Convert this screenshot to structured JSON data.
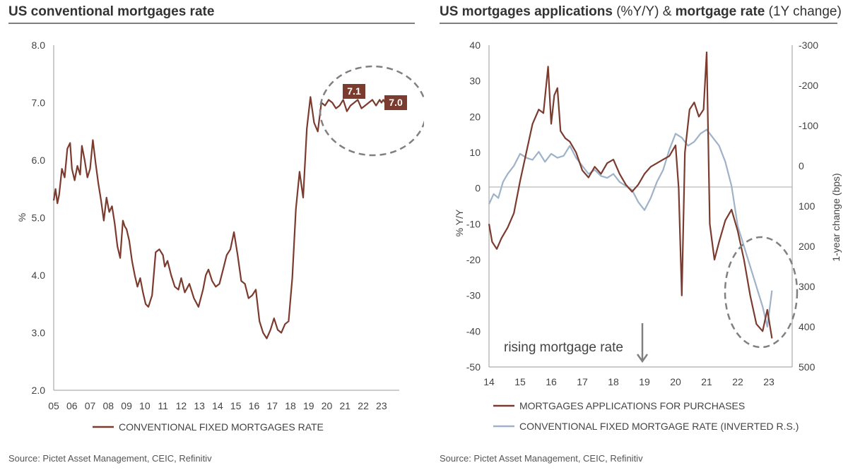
{
  "left": {
    "title": "US conventional mortgages rate",
    "source": "Source: Pictet Asset Management, CEIC, Refinitiv",
    "annotations": [
      "7.1",
      "7.0"
    ]
  },
  "right": {
    "title_part1": "US mortgages applications",
    "title_part2": " (%Y/Y) ",
    "title_part3": "&",
    "title_part4": " mortgage rate",
    "title_part5": " (1Y change)",
    "source": "Source: Pictet Asset Management, CEIC, Refinitiv",
    "annotation": "rising mortgage rate"
  },
  "colors": {
    "primary": "#7b3b2e",
    "secondary": "#9eb2c8",
    "label_box": "#7b3b2e",
    "circle": "#808080"
  },
  "chart_data": [
    {
      "type": "line",
      "title": "US conventional mortgages rate",
      "ylabel": "%",
      "ylim": [
        2.0,
        8.0
      ],
      "yticks": [
        "2.0",
        "3.0",
        "4.0",
        "5.0",
        "6.0",
        "7.0",
        "8.0"
      ],
      "xticks": [
        "05",
        "06",
        "07",
        "08",
        "09",
        "10",
        "11",
        "12",
        "13",
        "14",
        "15",
        "16",
        "17",
        "18",
        "19",
        "20",
        "21",
        "22",
        "23"
      ],
      "series": [
        {
          "name": "CONVENTIONAL FIXED MORTGAGES RATE",
          "x": [
            2005.0,
            2005.1,
            2005.2,
            2005.3,
            2005.45,
            2005.6,
            2005.75,
            2005.9,
            2006.0,
            2006.15,
            2006.3,
            2006.45,
            2006.55,
            2006.7,
            2006.85,
            2007.0,
            2007.15,
            2007.3,
            2007.45,
            2007.6,
            2007.75,
            2007.9,
            2008.05,
            2008.2,
            2008.35,
            2008.5,
            2008.65,
            2008.8,
            2008.9,
            2009.0,
            2009.15,
            2009.3,
            2009.45,
            2009.6,
            2009.75,
            2009.9,
            2010.05,
            2010.2,
            2010.4,
            2010.6,
            2010.8,
            2011.0,
            2011.1,
            2011.25,
            2011.45,
            2011.65,
            2011.85,
            2012.0,
            2012.2,
            2012.45,
            2012.7,
            2012.95,
            2013.2,
            2013.35,
            2013.5,
            2013.7,
            2013.9,
            2014.1,
            2014.3,
            2014.5,
            2014.7,
            2014.9,
            2015.1,
            2015.3,
            2015.5,
            2015.7,
            2015.9,
            2016.1,
            2016.3,
            2016.5,
            2016.7,
            2016.9,
            2017.1,
            2017.3,
            2017.5,
            2017.7,
            2017.9,
            2018.1,
            2018.3,
            2018.5,
            2018.7,
            2018.9,
            2019.1,
            2019.3,
            2019.5,
            2019.7,
            2019.9,
            2020.1,
            2020.3,
            2020.5,
            2020.7,
            2020.9,
            2021.1,
            2021.3,
            2021.5,
            2021.7,
            2021.9,
            2022.1,
            2022.3,
            2022.5,
            2022.7,
            2022.8,
            2022.9,
            2023.0,
            2023.1,
            2023.2
          ],
          "values": [
            5.3,
            5.5,
            5.25,
            5.4,
            5.85,
            5.7,
            6.2,
            6.3,
            5.85,
            5.65,
            5.9,
            5.75,
            6.25,
            6.0,
            5.7,
            5.85,
            6.35,
            5.95,
            5.6,
            5.3,
            4.95,
            5.35,
            5.1,
            5.2,
            4.9,
            4.5,
            4.3,
            4.95,
            4.85,
            4.8,
            4.6,
            4.25,
            4.0,
            3.8,
            3.95,
            3.7,
            3.5,
            3.45,
            3.65,
            4.4,
            4.45,
            4.35,
            4.15,
            4.25,
            4.0,
            3.8,
            3.75,
            3.95,
            3.7,
            3.85,
            3.6,
            3.45,
            3.75,
            4.0,
            4.1,
            3.9,
            3.8,
            3.85,
            4.1,
            4.35,
            4.45,
            4.75,
            4.35,
            3.9,
            3.85,
            3.6,
            3.65,
            3.75,
            3.2,
            3.0,
            2.9,
            3.05,
            3.25,
            3.05,
            3.0,
            3.15,
            3.2,
            3.95,
            5.15,
            5.8,
            5.35,
            6.55,
            7.1,
            6.65,
            6.5,
            7.0,
            6.95,
            7.05,
            7.0,
            6.9,
            6.95,
            7.05,
            6.85,
            6.95,
            7.0,
            7.05,
            6.9,
            6.95,
            7.0,
            7.05,
            6.95,
            7.0,
            7.05,
            7.0,
            7.05,
            7.0
          ]
        }
      ]
    },
    {
      "type": "line",
      "title": "US mortgages applications (%Y/Y) & mortgage rate (1Y change)",
      "ylabel": "% Y/Y",
      "ylabel_right": "1-year change (bps)",
      "ylim": [
        -50,
        40
      ],
      "ylim_right_inverted": [
        500,
        -300
      ],
      "yticks": [
        "-50",
        "-40",
        "-30",
        "-20",
        "-10",
        "0",
        "10",
        "20",
        "30",
        "40"
      ],
      "yticks_right": [
        "500",
        "400",
        "300",
        "200",
        "100",
        "0",
        "-100",
        "-200",
        "-300"
      ],
      "xticks": [
        "14",
        "15",
        "16",
        "17",
        "18",
        "19",
        "20",
        "21",
        "22",
        "23"
      ],
      "series": [
        {
          "name": "MORTGAGES APPLICATIONS FOR PURCHASES",
          "x": [
            2014.0,
            2014.1,
            2014.25,
            2014.4,
            2014.6,
            2014.8,
            2015.0,
            2015.2,
            2015.4,
            2015.6,
            2015.75,
            2015.9,
            2016.0,
            2016.1,
            2016.2,
            2016.3,
            2016.45,
            2016.6,
            2016.8,
            2017.0,
            2017.2,
            2017.4,
            2017.6,
            2017.8,
            2018.0,
            2018.2,
            2018.4,
            2018.6,
            2018.8,
            2019.0,
            2019.2,
            2019.4,
            2019.6,
            2019.8,
            2020.0,
            2020.1,
            2020.2,
            2020.3,
            2020.45,
            2020.6,
            2020.75,
            2020.9,
            2021.0,
            2021.1,
            2021.25,
            2021.4,
            2021.6,
            2021.8,
            2022.0,
            2022.2,
            2022.4,
            2022.6,
            2022.8,
            2022.95,
            2023.1
          ],
          "values": [
            -10,
            -15,
            -17,
            -14,
            -11,
            -7,
            2,
            10,
            18,
            22,
            21,
            34,
            18,
            26,
            28,
            16,
            14,
            13,
            10,
            5,
            3,
            6,
            4,
            7,
            8,
            4,
            1,
            -1,
            1,
            4,
            6,
            7,
            8,
            9,
            12,
            0,
            -30,
            10,
            22,
            24,
            20,
            22,
            38,
            -10,
            -20,
            -15,
            -9,
            -6,
            -12,
            -20,
            -30,
            -38,
            -40,
            -34,
            -42
          ]
        },
        {
          "name": "CONVENTIONAL FIXED MORTGAGE RATE (INVERTED R.S.)",
          "x": [
            2014.0,
            2014.15,
            2014.3,
            2014.45,
            2014.6,
            2014.8,
            2015.0,
            2015.2,
            2015.4,
            2015.6,
            2015.8,
            2016.0,
            2016.2,
            2016.4,
            2016.6,
            2016.8,
            2017.0,
            2017.2,
            2017.4,
            2017.6,
            2017.8,
            2018.0,
            2018.2,
            2018.4,
            2018.6,
            2018.8,
            2019.0,
            2019.2,
            2019.4,
            2019.6,
            2019.8,
            2020.0,
            2020.2,
            2020.4,
            2020.6,
            2020.8,
            2021.0,
            2021.2,
            2021.4,
            2021.6,
            2021.8,
            2022.0,
            2022.2,
            2022.4,
            2022.6,
            2022.8,
            2022.95,
            2023.1
          ],
          "values": [
            95,
            70,
            80,
            40,
            20,
            0,
            -30,
            -20,
            -15,
            -35,
            -10,
            -30,
            -20,
            -25,
            -50,
            -20,
            0,
            20,
            10,
            25,
            30,
            20,
            40,
            50,
            60,
            90,
            110,
            80,
            40,
            10,
            -40,
            -80,
            -70,
            -50,
            -60,
            -80,
            -90,
            -70,
            -50,
            -10,
            50,
            150,
            200,
            250,
            300,
            350,
            400,
            310
          ]
        }
      ]
    }
  ]
}
